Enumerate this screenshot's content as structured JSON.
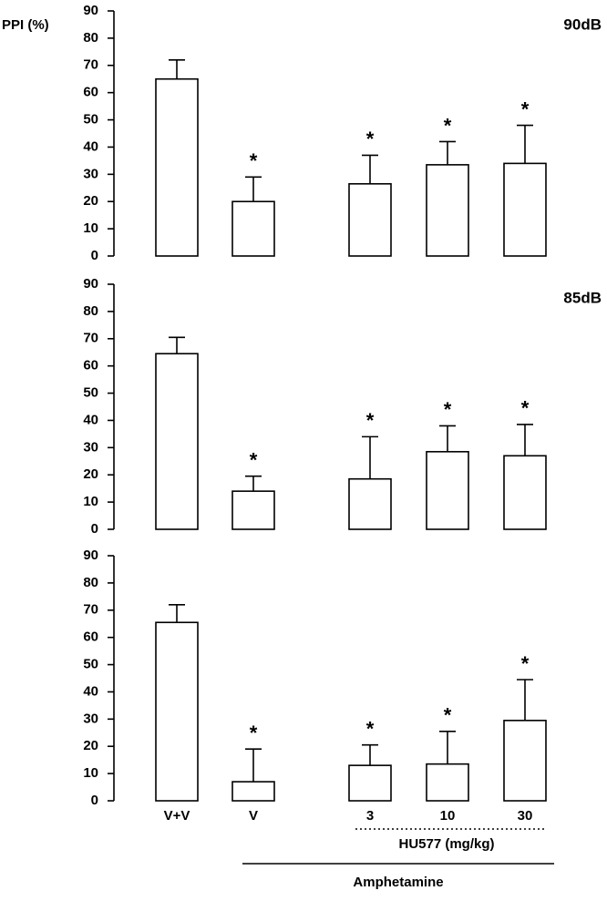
{
  "chart_data": [
    {
      "type": "bar",
      "ylabel": "PPI (%)",
      "panel_label": "90dB",
      "color": "#ffffff",
      "values": [
        65,
        20,
        26.5,
        33.5,
        34
      ],
      "errors": [
        7,
        9,
        10.5,
        8.5,
        14
      ],
      "significance": [
        null,
        "*",
        "*",
        "*",
        "*"
      ],
      "ylim": [
        0,
        90
      ],
      "yticks": [
        0,
        10,
        20,
        30,
        40,
        50,
        60,
        70,
        80,
        90
      ]
    },
    {
      "type": "bar",
      "panel_label": "85dB",
      "color": "#ffffff",
      "values": [
        64.5,
        14,
        18.5,
        28.5,
        27
      ],
      "errors": [
        6,
        5.5,
        15.5,
        9.5,
        11.5
      ],
      "significance": [
        null,
        "*",
        "*",
        "*",
        "*"
      ],
      "ylim": [
        0,
        90
      ],
      "yticks": [
        0,
        10,
        20,
        30,
        40,
        50,
        60,
        70,
        80,
        90
      ]
    },
    {
      "type": "bar",
      "color": "#ffffff",
      "categories": [
        "V+V",
        "V",
        "3",
        "10",
        "30"
      ],
      "values": [
        65.5,
        7,
        13,
        13.5,
        29.5
      ],
      "errors": [
        6.5,
        12,
        7.5,
        12,
        15
      ],
      "significance": [
        null,
        "*",
        "*",
        "*",
        "*"
      ],
      "ylim": [
        0,
        90
      ],
      "yticks": [
        0,
        10,
        20,
        30,
        40,
        50,
        60,
        70,
        80,
        90
      ],
      "group_labels": [
        "HU577 (mg/kg)",
        "Amphetamine"
      ]
    }
  ]
}
